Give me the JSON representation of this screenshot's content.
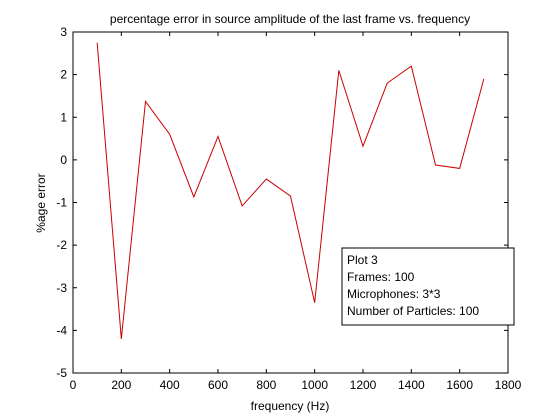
{
  "chart_data": {
    "type": "line",
    "title": "percentage error in source amplitude of the last frame vs. frequency",
    "xlabel": "frequency (Hz)",
    "ylabel": "%age error",
    "xlim": [
      0,
      1800
    ],
    "ylim": [
      -5,
      3
    ],
    "xticks": [
      0,
      200,
      400,
      600,
      800,
      1000,
      1200,
      1400,
      1600,
      1800
    ],
    "yticks": [
      -5,
      -4,
      -3,
      -2,
      -1,
      0,
      1,
      2,
      3
    ],
    "grid": false,
    "series": [
      {
        "color": "#cc0000",
        "x": [
          100,
          200,
          300,
          400,
          500,
          600,
          700,
          800,
          900,
          1000,
          1100,
          1200,
          1300,
          1400,
          1500,
          1600,
          1700
        ],
        "y": [
          2.75,
          -4.2,
          1.37,
          0.6,
          -0.87,
          0.55,
          -1.08,
          -0.45,
          -0.85,
          -3.35,
          2.1,
          0.32,
          1.8,
          2.2,
          -0.12,
          -0.2,
          1.9
        ]
      }
    ],
    "annotation": {
      "placement": "lower-right",
      "lines": [
        "Plot 3",
        "Frames: 100",
        "Microphones: 3*3",
        "Number of Particles: 100"
      ]
    }
  }
}
